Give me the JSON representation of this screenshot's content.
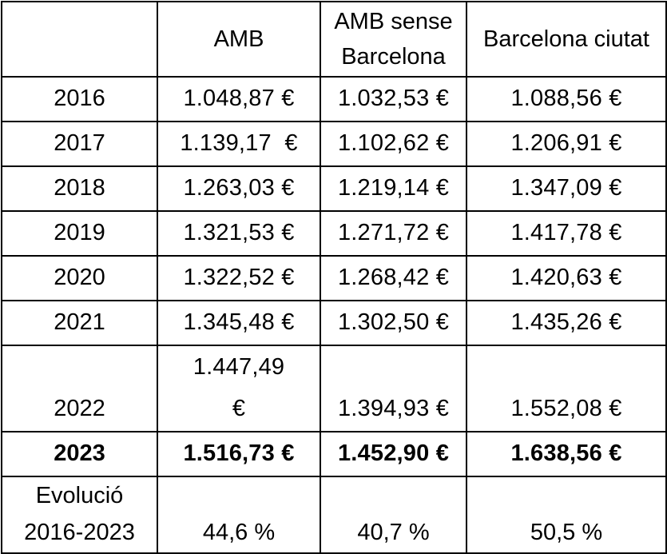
{
  "table": {
    "headers": [
      "",
      "AMB",
      "AMB sense Barcelona",
      "Barcelona ciutat"
    ],
    "rows": [
      {
        "year": "2016",
        "amb": "1.048,87 €",
        "amb_sense_bcn": "1.032,53 €",
        "bcn": "1.088,56 €"
      },
      {
        "year": "2017",
        "amb": "1.139,17  €",
        "amb_sense_bcn": "1.102,62 €",
        "bcn": "1.206,91 €"
      },
      {
        "year": "2018",
        "amb": "1.263,03 €",
        "amb_sense_bcn": "1.219,14 €",
        "bcn": "1.347,09 €"
      },
      {
        "year": "2019",
        "amb": "1.321,53 €",
        "amb_sense_bcn": "1.271,72 €",
        "bcn": "1.417,78 €"
      },
      {
        "year": "2020",
        "amb": "1.322,52 €",
        "amb_sense_bcn": "1.268,42 €",
        "bcn": "1.420,63 €"
      },
      {
        "year": "2021",
        "amb": "1.345,48 €",
        "amb_sense_bcn": "1.302,50 €",
        "bcn": "1.435,26 €"
      },
      {
        "year": "2022",
        "amb": "1.447,49 €",
        "amb_sense_bcn": "1.394,93 €",
        "bcn": "1.552,08 €"
      },
      {
        "year": "2023",
        "amb": "1.516,73 €",
        "amb_sense_bcn": "1.452,90 €",
        "bcn": "1.638,56 €"
      }
    ],
    "evolution": {
      "label": "Evolució 2016-2023",
      "amb": "44,6 %",
      "amb_sense_bcn": "40,7 %",
      "bcn": "50,5 %"
    }
  }
}
